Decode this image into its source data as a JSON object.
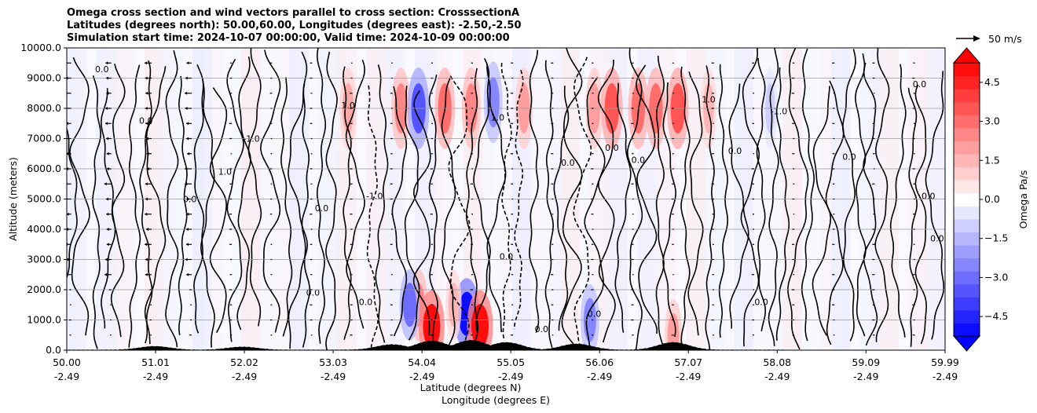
{
  "chart_data": {
    "type": "heatmap",
    "title_lines": [
      "Omega cross section and wind vectors parallel to cross section: CrosssectionA",
      "Latitudes (degrees north): 50.00,60.00, Longitudes (degrees east): -2.50,-2.50",
      "Simulation start time: 2024-10-07 00:00:00, Valid time: 2024-10-09 00:00:00"
    ],
    "xlabel": "Latitude (degrees N)",
    "xlabel2": "Longitude (degrees E)",
    "ylabel": "Altitude (meters)",
    "xlim": [
      50.0,
      59.99
    ],
    "ylim": [
      0,
      10000
    ],
    "x_ticks": [
      {
        "lat": "50.00",
        "lon": "-2.49",
        "value": 50.0
      },
      {
        "lat": "51.01",
        "lon": "-2.49",
        "value": 51.01
      },
      {
        "lat": "52.02",
        "lon": "-2.49",
        "value": 52.02
      },
      {
        "lat": "53.03",
        "lon": "-2.49",
        "value": 53.03
      },
      {
        "lat": "54.04",
        "lon": "-2.49",
        "value": 54.04
      },
      {
        "lat": "55.05",
        "lon": "-2.49",
        "value": 55.05
      },
      {
        "lat": "56.06",
        "lon": "-2.49",
        "value": 56.06
      },
      {
        "lat": "57.07",
        "lon": "-2.49",
        "value": 57.07
      },
      {
        "lat": "58.08",
        "lon": "-2.49",
        "value": 58.08
      },
      {
        "lat": "59.09",
        "lon": "-2.49",
        "value": 59.09
      },
      {
        "lat": "59.99",
        "lon": "-2.49",
        "value": 59.99
      }
    ],
    "y_ticks": [
      "0.0",
      "1000.0",
      "2000.0",
      "3000.0",
      "4000.0",
      "5000.0",
      "6000.0",
      "7000.0",
      "8000.0",
      "9000.0",
      "10000.0"
    ],
    "grid": true,
    "colorbar": {
      "label": "Omega Pa/s",
      "range": [
        -5.25,
        5.25
      ],
      "ticks": [
        "4.5",
        "3.0",
        "1.5",
        "0.0",
        "−1.5",
        "−3.0",
        "−4.5"
      ],
      "extend": "both",
      "colormap": "bwr"
    },
    "vector_key": {
      "label": "50 m/s"
    },
    "contour_label_samples": [
      "0.0",
      "1.0",
      "-1.0",
      "0.0",
      "0.0",
      "1.0",
      "0.0",
      "-1.0"
    ],
    "omega_features": [
      {
        "lat": 53.2,
        "alt": 8000,
        "value": 1.8
      },
      {
        "lat": 53.8,
        "alt": 8000,
        "value": 2.5
      },
      {
        "lat": 54.0,
        "alt": 8000,
        "value": -3.5
      },
      {
        "lat": 54.3,
        "alt": 8000,
        "value": 3.0
      },
      {
        "lat": 54.6,
        "alt": 8000,
        "value": 2.5
      },
      {
        "lat": 54.85,
        "alt": 8200,
        "value": -2.5
      },
      {
        "lat": 55.2,
        "alt": 8000,
        "value": 2.0
      },
      {
        "lat": 56.0,
        "alt": 8000,
        "value": 2.0
      },
      {
        "lat": 56.2,
        "alt": 8000,
        "value": 3.5
      },
      {
        "lat": 56.5,
        "alt": 8000,
        "value": 3.0
      },
      {
        "lat": 56.7,
        "alt": 8000,
        "value": 3.0
      },
      {
        "lat": 56.95,
        "alt": 8000,
        "value": 3.5
      },
      {
        "lat": 57.3,
        "alt": 8000,
        "value": 1.5
      },
      {
        "lat": 58.0,
        "alt": 8000,
        "value": -1.0
      },
      {
        "lat": 54.0,
        "alt": 1500,
        "value": 2.5
      },
      {
        "lat": 54.15,
        "alt": 800,
        "value": 5.0
      },
      {
        "lat": 54.55,
        "alt": 1200,
        "value": -5.0
      },
      {
        "lat": 54.7,
        "alt": 800,
        "value": 5.0
      },
      {
        "lat": 53.9,
        "alt": 1500,
        "value": -3.0
      },
      {
        "lat": 55.95,
        "alt": 1000,
        "value": -2.5
      },
      {
        "lat": 56.9,
        "alt": 500,
        "value": 2.0
      },
      {
        "lat": 54.4,
        "alt": 1500,
        "value": 1.5
      }
    ],
    "terrain_peaks": [
      {
        "lat": 53.7,
        "height": 180
      },
      {
        "lat": 54.15,
        "height": 300
      },
      {
        "lat": 54.6,
        "height": 320
      },
      {
        "lat": 55.0,
        "height": 250
      },
      {
        "lat": 55.8,
        "height": 200
      },
      {
        "lat": 56.9,
        "height": 250
      },
      {
        "lat": 52.0,
        "height": 100
      },
      {
        "lat": 51.0,
        "height": 120
      }
    ]
  }
}
